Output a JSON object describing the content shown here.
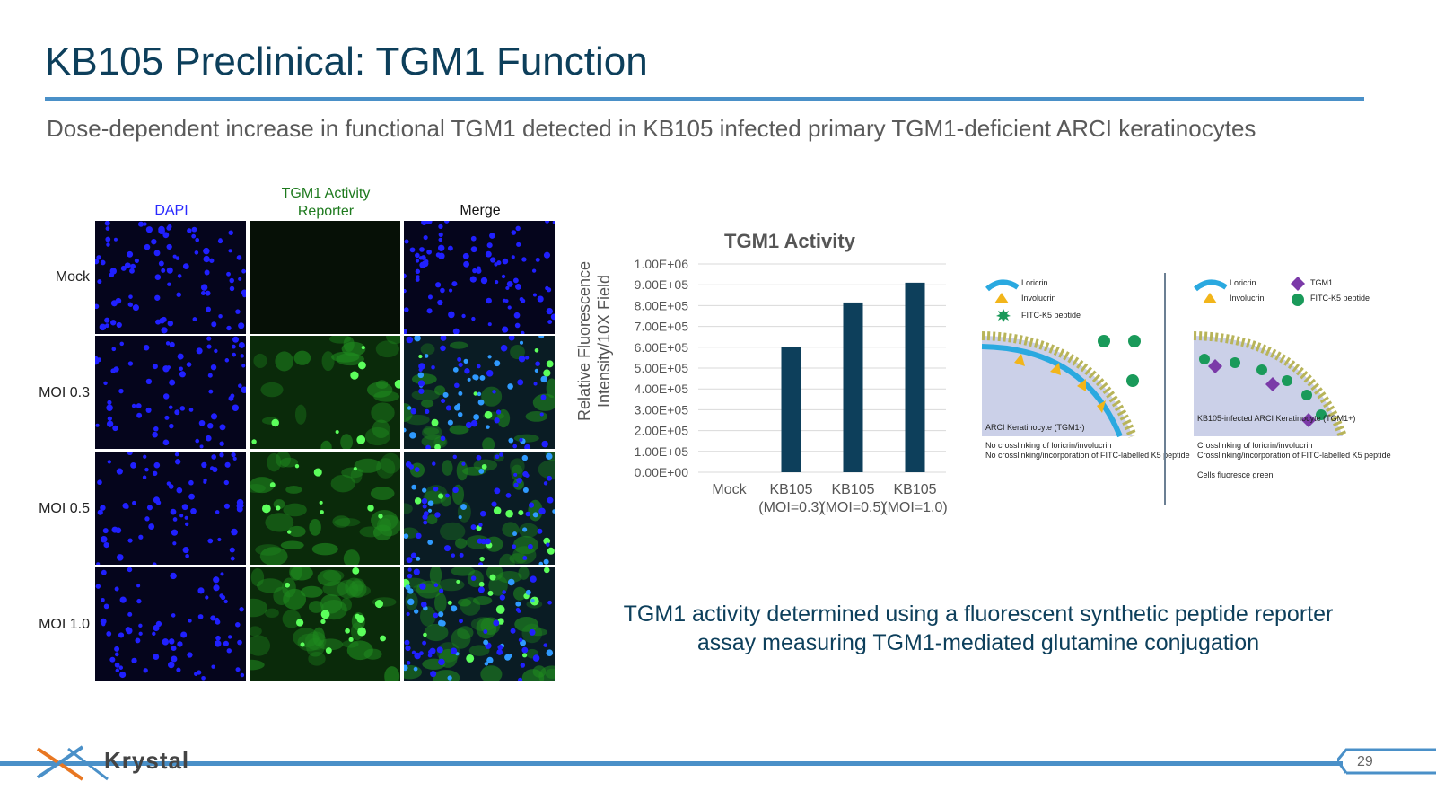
{
  "slide": {
    "title": "KB105 Preclinical: TGM1 Function",
    "subtitle": "Dose-dependent increase in functional TGM1 detected in KB105 infected primary TGM1-deficient ARCI keratinocytes",
    "page_number": "29",
    "logo_text": "Krystal"
  },
  "microscopy": {
    "columns": [
      {
        "label": "DAPI",
        "color": "#2a2aff"
      },
      {
        "label": "TGM1 Activity Reporter",
        "color": "#1e7a1e"
      },
      {
        "label": "Merge",
        "color": "#111111"
      }
    ],
    "rows": [
      "Mock",
      "MOI 0.3",
      "MOI 0.5",
      "MOI 1.0"
    ]
  },
  "chart_data": {
    "type": "bar",
    "title": "TGM1 Activity",
    "ylabel": "Relative Fluorescence Intensity/10X Field",
    "xlabel": "",
    "categories": [
      "Mock",
      "KB105 (MOI=0.3)",
      "KB105 (MOI=0.5)",
      "KB105 (MOI=1.0)"
    ],
    "values": [
      0,
      600000,
      815000,
      910000
    ],
    "ylim": [
      0,
      1000000
    ],
    "yticks": [
      "0.00E+00",
      "1.00E+05",
      "2.00E+05",
      "3.00E+05",
      "4.00E+05",
      "5.00E+05",
      "6.00E+05",
      "7.00E+05",
      "8.00E+05",
      "9.00E+05",
      "1.00E+06"
    ],
    "bar_color": "#0d3f5b",
    "grid": true,
    "legend": "none"
  },
  "schematic": {
    "left": {
      "legend": [
        "Loricrin",
        "Involucrin",
        "FITC-K5 peptide"
      ],
      "cell_label": "ARCI Keratinocyte (TGM1-)",
      "bullets": [
        "No crosslinking of loricrin/involucrin",
        "No crosslinking/incorporation of FITC-labelled K5 peptide"
      ]
    },
    "right": {
      "legend": [
        "Loricrin",
        "Involucrin",
        "TGM1",
        "FITC-K5 peptide"
      ],
      "cell_label": "KB105-infected ARCI Keratinocyte (TGM1+)",
      "bullets": [
        "Crosslinking of loricrin/involucrin",
        "Crosslinking/incorporation of FITC-labelled K5 peptide",
        "Cells fluoresce green"
      ]
    }
  },
  "caption": "TGM1 activity determined using a fluorescent synthetic peptide reporter assay measuring TGM1-mediated glutamine conjugation",
  "colors": {
    "title": "#0d3f5b",
    "accent": "#4a90c8",
    "bar": "#0d3f5b",
    "dapi": "#1a1aff",
    "reporter": "#2ecc2e"
  }
}
